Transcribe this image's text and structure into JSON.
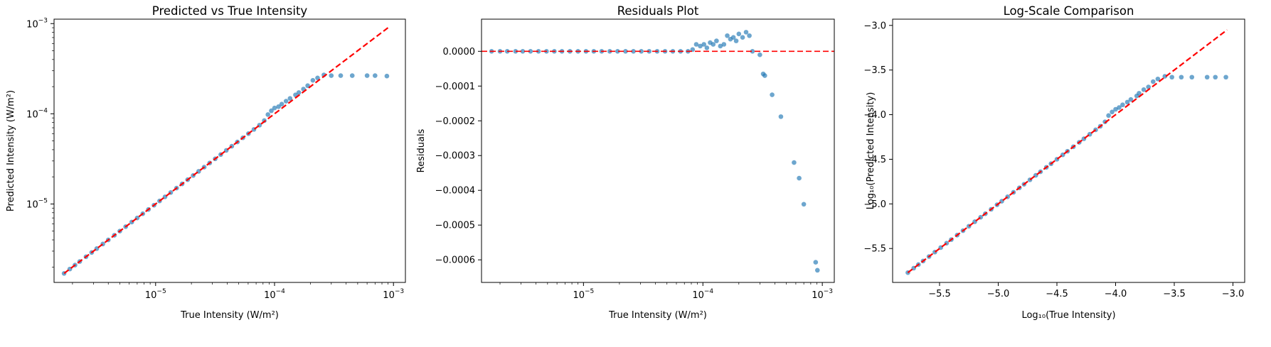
{
  "figure": {
    "colors": {
      "points": "#1f77b4",
      "reference_line": "#ff0000",
      "background": "#ffffff"
    }
  },
  "chart_data": [
    {
      "type": "scatter",
      "title": "Predicted vs True Intensity",
      "xlabel": "True Intensity (W/m²)",
      "ylabel": "Predicted Intensity (W/m²)",
      "xscale": "log",
      "yscale": "log",
      "xlim": [
        1.4e-06,
        0.00126
      ],
      "ylim": [
        1.35e-06,
        0.00112
      ],
      "xticks": [
        {
          "value": 1e-05,
          "base": "10",
          "exp": "−5"
        },
        {
          "value": 0.0001,
          "base": "10",
          "exp": "−4"
        },
        {
          "value": 0.001,
          "base": "10",
          "exp": "−3"
        }
      ],
      "yticks": [
        {
          "value": 1e-05,
          "base": "10",
          "exp": "−5"
        },
        {
          "value": 0.0001,
          "base": "10",
          "exp": "−4"
        },
        {
          "value": 0.001,
          "base": "10",
          "exp": "−3"
        }
      ],
      "reference_line": {
        "x": [
          1.7e-06,
          0.0009
        ],
        "y": [
          1.7e-06,
          0.0009
        ],
        "style": "dashed"
      },
      "series": [
        {
          "x": [
            1.7e-06,
            1.9e-06,
            2.1e-06,
            2.3e-06,
            2.6e-06,
            2.9e-06,
            3.2e-06,
            3.6e-06,
            4e-06,
            4.5e-06,
            5e-06,
            5.6e-06,
            6.3e-06,
            7e-06,
            7.8e-06,
            8.7e-06,
            9.7e-06,
            1.08e-05,
            1.2e-05,
            1.34e-05,
            1.5e-05,
            1.67e-05,
            1.86e-05,
            2.07e-05,
            2.3e-05,
            2.56e-05,
            2.85e-05,
            3.17e-05,
            3.53e-05,
            3.93e-05,
            4.37e-05,
            4.87e-05,
            5.42e-05,
            6.03e-05,
            6.71e-05,
            7.47e-05,
            8.2e-05,
            8.8e-05,
            9.4e-05,
            0.0001,
            0.000108,
            0.000115,
            0.000125,
            0.000135,
            0.00015,
            0.00016,
            0.000175,
            0.00019,
            0.00021,
            0.00023,
            0.00026,
            0.0003,
            0.00036,
            0.00045,
            0.0006,
            0.0007,
            0.00088
          ],
          "y": [
            1.7e-06,
            1.9e-06,
            2.1e-06,
            2.3e-06,
            2.6e-06,
            2.9e-06,
            3.2e-06,
            3.6e-06,
            4e-06,
            4.5e-06,
            5e-06,
            5.6e-06,
            6.3e-06,
            7e-06,
            7.8e-06,
            8.7e-06,
            9.7e-06,
            1.08e-05,
            1.2e-05,
            1.34e-05,
            1.5e-05,
            1.67e-05,
            1.86e-05,
            2.07e-05,
            2.3e-05,
            2.56e-05,
            2.85e-05,
            3.17e-05,
            3.53e-05,
            3.93e-05,
            4.37e-05,
            4.87e-05,
            5.42e-05,
            6.03e-05,
            6.71e-05,
            7.47e-05,
            8.4e-05,
            9.8e-05,
            0.000108,
            0.000116,
            0.00012,
            0.000128,
            0.000138,
            0.000148,
            0.000162,
            0.000172,
            0.000188,
            0.000205,
            0.000235,
            0.00025,
            0.00027,
            0.000265,
            0.000265,
            0.000265,
            0.000265,
            0.000265,
            0.000262
          ]
        }
      ]
    },
    {
      "type": "scatter",
      "title": "Residuals Plot",
      "xlabel": "True Intensity (W/m²)",
      "ylabel": "Residuals",
      "xscale": "log",
      "yscale": "linear",
      "xlim": [
        1.4e-06,
        0.00126
      ],
      "ylim": [
        -0.000665,
        9.25e-05
      ],
      "xticks": [
        {
          "value": 1e-05,
          "base": "10",
          "exp": "−5"
        },
        {
          "value": 0.0001,
          "base": "10",
          "exp": "−4"
        },
        {
          "value": 0.001,
          "base": "10",
          "exp": "−3"
        }
      ],
      "yticks": [
        {
          "value": 0,
          "label": "0.0000"
        },
        {
          "value": -0.0001,
          "label": "−0.0001"
        },
        {
          "value": -0.0002,
          "label": "−0.0002"
        },
        {
          "value": -0.0003,
          "label": "−0.0003"
        },
        {
          "value": -0.0004,
          "label": "−0.0004"
        },
        {
          "value": -0.0005,
          "label": "−0.0005"
        },
        {
          "value": -0.0006,
          "label": "−0.0006"
        }
      ],
      "reference_line": {
        "y": 0,
        "style": "dashed"
      },
      "series": [
        {
          "x": [
            1.7e-06,
            2e-06,
            2.3e-06,
            2.7e-06,
            3.1e-06,
            3.6e-06,
            4.2e-06,
            4.9e-06,
            5.7e-06,
            6.6e-06,
            7.7e-06,
            9e-06,
            1.05e-05,
            1.22e-05,
            1.42e-05,
            1.66e-05,
            1.93e-05,
            2.25e-05,
            2.62e-05,
            3.05e-05,
            3.55e-05,
            4.14e-05,
            4.82e-05,
            5.6e-05,
            6.5e-05,
            7.5e-05,
            8.2e-05,
            8.8e-05,
            9.5e-05,
            0.000102,
            0.000108,
            0.000115,
            0.000122,
            0.00013,
            0.00014,
            0.00015,
            0.00016,
            0.00017,
            0.00018,
            0.00019,
            0.0002,
            0.000215,
            0.00023,
            0.000245,
            0.00026,
            0.0003,
            0.00032,
            0.00033,
            0.00038,
            0.00045,
            0.00058,
            0.00064,
            0.0007,
            0.00088,
            0.00091
          ],
          "y": [
            0,
            0,
            0,
            0,
            0,
            0,
            0,
            0,
            0,
            0,
            0,
            0,
            0,
            0,
            0,
            0,
            0,
            0,
            0,
            0,
            0,
            0,
            0,
            0,
            0,
            0,
            5e-06,
            2e-05,
            1.5e-05,
            2e-05,
            1e-05,
            2.5e-05,
            2e-05,
            3e-05,
            1.5e-05,
            2e-05,
            4.5e-05,
            3.5e-05,
            4e-05,
            3e-05,
            5e-05,
            4e-05,
            5.5e-05,
            4.5e-05,
            0.0,
            -1e-05,
            -6.5e-05,
            -7e-05,
            -0.000125,
            -0.000188,
            -0.00032,
            -0.000365,
            -0.00044,
            -0.000607,
            -0.00063
          ]
        }
      ]
    },
    {
      "type": "scatter",
      "title": "Log-Scale Comparison",
      "xlabel": "Log₁₀(True Intensity)",
      "ylabel": "Log₁₀(Predicted Intensity)",
      "xscale": "linear",
      "yscale": "linear",
      "xlim": [
        -5.9,
        -2.9
      ],
      "ylim": [
        -5.88,
        -2.93
      ],
      "xticks": [
        {
          "value": -5.5,
          "label": "−5.5"
        },
        {
          "value": -5.0,
          "label": "−5.0"
        },
        {
          "value": -4.5,
          "label": "−4.5"
        },
        {
          "value": -4.0,
          "label": "−4.0"
        },
        {
          "value": -3.5,
          "label": "−3.5"
        },
        {
          "value": -3.0,
          "label": "−3.0"
        }
      ],
      "yticks": [
        {
          "value": -5.5,
          "label": "−5.5"
        },
        {
          "value": -5.0,
          "label": "−5.0"
        },
        {
          "value": -4.5,
          "label": "−4.5"
        },
        {
          "value": -4.0,
          "label": "−4.0"
        },
        {
          "value": -3.5,
          "label": "−3.5"
        },
        {
          "value": -3.0,
          "label": "−3.0"
        }
      ],
      "reference_line": {
        "x": [
          -5.77,
          -3.05
        ],
        "y": [
          -5.77,
          -3.05
        ],
        "style": "dashed"
      },
      "series": [
        {
          "x": [
            -5.77,
            -5.72,
            -5.68,
            -5.64,
            -5.59,
            -5.54,
            -5.49,
            -5.44,
            -5.4,
            -5.35,
            -5.3,
            -5.25,
            -5.2,
            -5.15,
            -5.11,
            -5.06,
            -5.01,
            -4.97,
            -4.92,
            -4.87,
            -4.82,
            -4.78,
            -4.73,
            -4.68,
            -4.64,
            -4.59,
            -4.55,
            -4.5,
            -4.45,
            -4.41,
            -4.36,
            -4.31,
            -4.27,
            -4.22,
            -4.17,
            -4.13,
            -4.09,
            -4.06,
            -4.03,
            -4.0,
            -3.97,
            -3.94,
            -3.9,
            -3.87,
            -3.82,
            -3.8,
            -3.76,
            -3.72,
            -3.68,
            -3.64,
            -3.58,
            -3.52,
            -3.44,
            -3.35,
            -3.22,
            -3.15,
            -3.06
          ],
          "y": [
            -5.77,
            -5.72,
            -5.68,
            -5.64,
            -5.59,
            -5.54,
            -5.49,
            -5.44,
            -5.4,
            -5.35,
            -5.3,
            -5.25,
            -5.2,
            -5.15,
            -5.11,
            -5.06,
            -5.01,
            -4.97,
            -4.92,
            -4.87,
            -4.82,
            -4.78,
            -4.73,
            -4.68,
            -4.64,
            -4.59,
            -4.55,
            -4.5,
            -4.45,
            -4.41,
            -4.36,
            -4.31,
            -4.27,
            -4.22,
            -4.17,
            -4.13,
            -4.08,
            -4.01,
            -3.97,
            -3.94,
            -3.92,
            -3.89,
            -3.86,
            -3.83,
            -3.79,
            -3.76,
            -3.72,
            -3.69,
            -3.63,
            -3.6,
            -3.57,
            -3.58,
            -3.58,
            -3.58,
            -3.58,
            -3.58,
            -3.58
          ]
        }
      ]
    }
  ]
}
